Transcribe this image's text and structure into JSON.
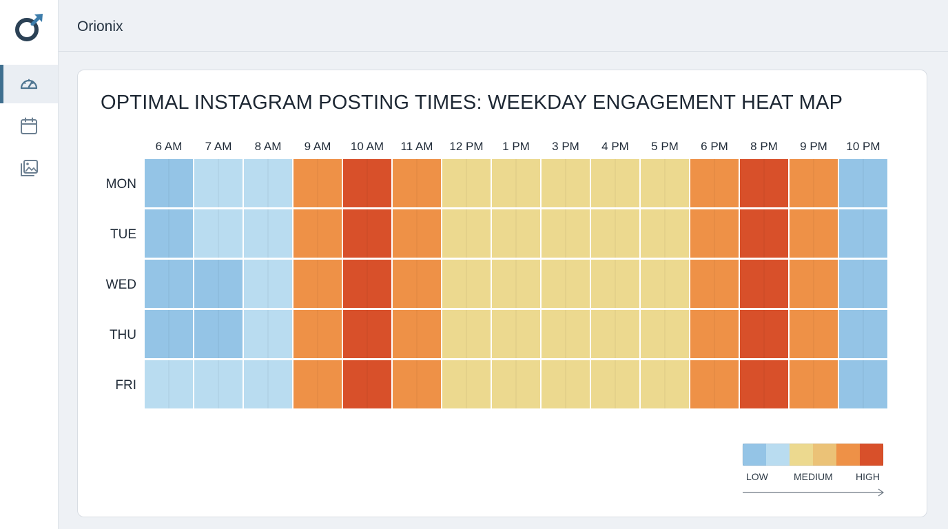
{
  "app": {
    "title": "Orionix"
  },
  "sidebar": {
    "items": [
      {
        "name": "dashboard",
        "icon": "gauge-icon",
        "active": true
      },
      {
        "name": "calendar",
        "icon": "calendar-icon",
        "active": false
      },
      {
        "name": "media",
        "icon": "gallery-icon",
        "active": false
      }
    ]
  },
  "colors": {
    "accent": "#3f6f8f",
    "scale": [
      "#94c4e6",
      "#b9dcf0",
      "#ecd98f",
      "#ebc277",
      "#ee9147",
      "#d8502a"
    ]
  },
  "chart_data": {
    "type": "heatmap",
    "title": "OPTIMAL INSTAGRAM POSTING TIMES: WEEKDAY ENGAGEMENT HEAT MAP",
    "x": [
      "6 AM",
      "7 AM",
      "8 AM",
      "9 AM",
      "10 AM",
      "11 AM",
      "12 PM",
      "1 PM",
      "3 PM",
      "4 PM",
      "5 PM",
      "6 PM",
      "8 PM",
      "9 PM",
      "10 PM"
    ],
    "y": [
      "MON",
      "TUE",
      "WED",
      "THU",
      "FRI"
    ],
    "values": [
      [
        1,
        2,
        2,
        5,
        6,
        5,
        3,
        3,
        3,
        3,
        3,
        5,
        6,
        5,
        1
      ],
      [
        1,
        2,
        2,
        5,
        6,
        5,
        3,
        3,
        3,
        3,
        3,
        5,
        6,
        5,
        1
      ],
      [
        1,
        1,
        2,
        5,
        6,
        5,
        3,
        3,
        3,
        3,
        3,
        5,
        6,
        5,
        1
      ],
      [
        1,
        1,
        2,
        5,
        6,
        5,
        3,
        3,
        3,
        3,
        3,
        5,
        6,
        5,
        1
      ],
      [
        2,
        2,
        2,
        5,
        6,
        5,
        3,
        3,
        3,
        3,
        3,
        5,
        6,
        5,
        1
      ]
    ],
    "scale_levels": 6,
    "legend": {
      "labels": [
        "LOW",
        "MEDIUM",
        "HIGH"
      ],
      "placement": "bottom-right"
    }
  }
}
